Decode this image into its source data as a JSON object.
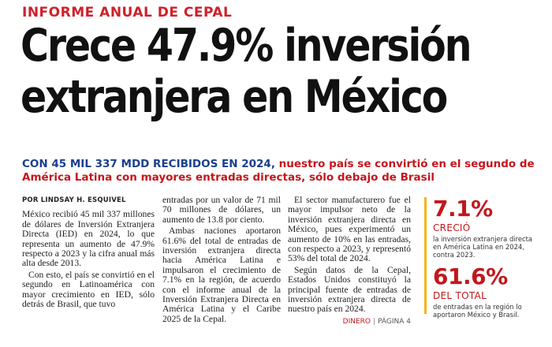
{
  "kicker": {
    "part1": "INFORME ANUAL",
    "part2": "DE CEPAL"
  },
  "headline": {
    "line1": "Crece 47.9% inversión",
    "line2": "extranjera en México"
  },
  "deck": {
    "lead": "CON 45 MIL 337 MDD RECIBIDOS EN 2024,",
    "rest": "nuestro país se convirtió en el segundo de América Latina con mayores entradas directas, sólo debajo de Brasil"
  },
  "byline": "POR LINDSAY H. ESQUIVEL",
  "body": {
    "col1": [
      "México recibió 45 mil 337 millones de dólares de Inversión Extranjera Directa (IED) en 2024, lo que representa un aumento de 47.9% respecto a 2023 y la cifra anual más alta desde 2013.",
      "Con esto, el país se convirtió en el segundo en Latinoamérica con mayor crecimiento en IED, sólo detrás de Brasil, que tuvo"
    ],
    "col2": [
      "entradas por un valor de 71 mil 70 millones de dólares, un aumento de 13.8 por ciento.",
      "Ambas naciones aportaron 61.6% del total de entradas de inversión extranjera directa hacia América Latina e impulsaron el crecimiento de 7.1% en la región, de acuerdo con el informe anual de la Inversión Extranjera Directa en América Latina y el Caribe 2025 de la Cepal."
    ],
    "col3": [
      "El sector manufacturero fue el mayor impulsor neto de la inversión extranjera directa en México, pues experimentó un aumento de 10% en las entradas, con respecto a 2023, y representó 53% del total de 2024.",
      "Según datos de la Cepal, Estados Unidos constituyó la principal fuente de entradas de inversión extranjera directa de nuestro país en 2024."
    ]
  },
  "source": {
    "section": "DINERO",
    "separator": "|",
    "page": "PÁGINA 4"
  },
  "sidebar": {
    "stat1": {
      "value": "7.1%",
      "label": "CRECIÓ",
      "desc": "la inversión extranjera directa en América Latina en 2024, contra 2023."
    },
    "stat2": {
      "value": "61.6%",
      "label": "DEL TOTAL",
      "desc": "de entradas en la región lo aportaron México y Brasil."
    }
  },
  "colors": {
    "accent_red": "#c4161c",
    "deck_blue": "#1a3f8e",
    "sidebar_rule": "#f2b418"
  }
}
